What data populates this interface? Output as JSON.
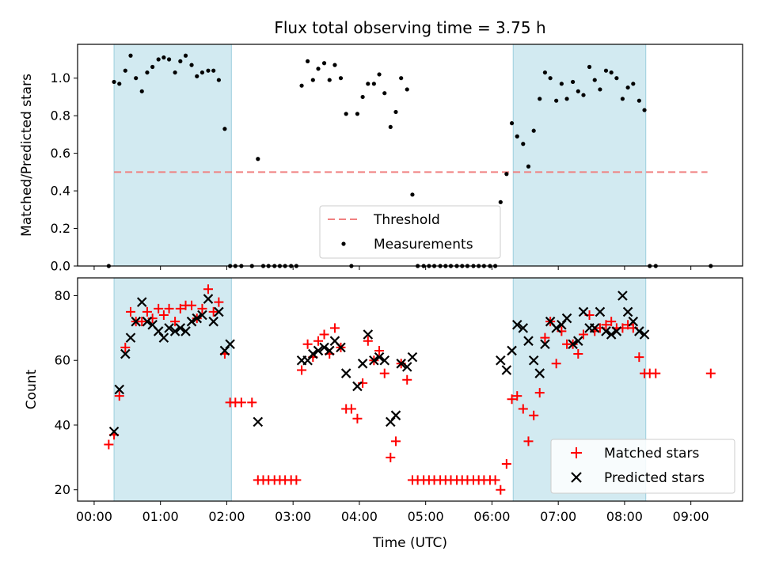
{
  "chart_data": [
    {
      "type": "scatter",
      "title": "Flux total observing time = 3.75 h",
      "xlabel": "",
      "ylabel": "Matched/Predicted stars",
      "ylim": [
        0,
        1.18
      ],
      "yticks": [
        0.0,
        0.2,
        0.4,
        0.6,
        0.8,
        1.0
      ],
      "ytick_labels": [
        "0.0",
        "0.2",
        "0.4",
        "0.6",
        "0.8",
        "1.0"
      ],
      "xlim": [
        -0.25,
        9.78
      ],
      "shaded_intervals": [
        [
          0.3,
          2.07
        ],
        [
          6.32,
          8.32
        ]
      ],
      "shade_color": "#add8e6",
      "legend_position": "bottom-center",
      "threshold": {
        "name": "Threshold",
        "value": 0.5,
        "x_range": [
          0.3,
          9.25
        ],
        "color": "#f08080"
      },
      "series": [
        {
          "name": "Measurements",
          "marker": "dot",
          "color": "#000000",
          "x": [
            0.22,
            0.3,
            0.38,
            0.47,
            0.55,
            0.63,
            0.72,
            0.8,
            0.88,
            0.97,
            1.05,
            1.13,
            1.22,
            1.3,
            1.38,
            1.47,
            1.55,
            1.63,
            1.72,
            1.8,
            1.88,
            1.97,
            2.05,
            2.13,
            2.22,
            2.38,
            2.47,
            2.55,
            2.63,
            2.72,
            2.8,
            2.88,
            2.97,
            3.05,
            3.13,
            3.22,
            3.3,
            3.38,
            3.47,
            3.55,
            3.63,
            3.72,
            3.8,
            3.88,
            3.97,
            4.05,
            4.13,
            4.22,
            4.3,
            4.38,
            4.47,
            4.55,
            4.63,
            4.72,
            4.8,
            4.88,
            4.97,
            5.05,
            5.13,
            5.22,
            5.3,
            5.38,
            5.47,
            5.55,
            5.63,
            5.72,
            5.8,
            5.88,
            5.97,
            6.05,
            6.13,
            6.22,
            6.3,
            6.38,
            6.47,
            6.55,
            6.63,
            6.72,
            6.8,
            6.88,
            6.97,
            7.05,
            7.13,
            7.22,
            7.3,
            7.38,
            7.47,
            7.55,
            7.63,
            7.72,
            7.8,
            7.88,
            7.97,
            8.05,
            8.13,
            8.22,
            8.3,
            8.38,
            8.47,
            9.3
          ],
          "y": [
            0.0,
            0.98,
            0.97,
            1.04,
            1.12,
            1.0,
            0.93,
            1.03,
            1.06,
            1.1,
            1.11,
            1.1,
            1.03,
            1.09,
            1.12,
            1.07,
            1.01,
            1.03,
            1.04,
            1.04,
            0.99,
            0.73,
            0.0,
            0.0,
            0.0,
            0.0,
            0.57,
            0.0,
            0.0,
            0.0,
            0.0,
            0.0,
            0.0,
            0.0,
            0.96,
            1.09,
            0.99,
            1.05,
            1.08,
            0.99,
            1.07,
            1.0,
            0.81,
            0.0,
            0.81,
            0.9,
            0.97,
            0.97,
            1.02,
            0.92,
            0.74,
            0.82,
            1.0,
            0.94,
            0.38,
            0.0,
            0.0,
            0.0,
            0.0,
            0.0,
            0.0,
            0.0,
            0.0,
            0.0,
            0.0,
            0.0,
            0.0,
            0.0,
            0.0,
            0.0,
            0.34,
            0.49,
            0.76,
            0.69,
            0.65,
            0.53,
            0.72,
            0.89,
            1.03,
            1.0,
            0.88,
            0.97,
            0.89,
            0.98,
            0.93,
            0.91,
            1.06,
            0.99,
            0.94,
            1.04,
            1.03,
            1.0,
            0.89,
            0.95,
            0.97,
            0.88,
            0.83,
            0.0,
            0.0,
            0.0
          ]
        }
      ]
    },
    {
      "type": "scatter",
      "title": "",
      "xlabel": "Time (UTC)",
      "ylabel": "Count",
      "ylim": [
        16.5,
        85.5
      ],
      "yticks": [
        20,
        40,
        60,
        80
      ],
      "ytick_labels": [
        "20",
        "40",
        "60",
        "80"
      ],
      "xlim": [
        -0.25,
        9.78
      ],
      "xticks": [
        0,
        1,
        2,
        3,
        4,
        5,
        6,
        7,
        8,
        9
      ],
      "xtick_labels": [
        "00:00",
        "01:00",
        "02:00",
        "03:00",
        "04:00",
        "05:00",
        "06:00",
        "07:00",
        "08:00",
        "09:00"
      ],
      "shaded_intervals": [
        [
          0.3,
          2.07
        ],
        [
          6.32,
          8.32
        ]
      ],
      "shade_color": "#add8e6",
      "legend_position": "bottom-right",
      "series": [
        {
          "name": "Matched stars",
          "marker": "plus",
          "color": "#ff0000",
          "x": [
            0.22,
            0.3,
            0.38,
            0.47,
            0.55,
            0.63,
            0.72,
            0.8,
            0.88,
            0.97,
            1.05,
            1.13,
            1.22,
            1.3,
            1.38,
            1.47,
            1.55,
            1.63,
            1.72,
            1.8,
            1.88,
            1.97,
            2.05,
            2.13,
            2.22,
            2.38,
            2.47,
            2.55,
            2.63,
            2.72,
            2.8,
            2.88,
            2.97,
            3.05,
            3.13,
            3.22,
            3.3,
            3.38,
            3.47,
            3.55,
            3.63,
            3.72,
            3.8,
            3.88,
            3.97,
            4.05,
            4.13,
            4.22,
            4.3,
            4.38,
            4.47,
            4.55,
            4.63,
            4.72,
            4.8,
            4.88,
            4.97,
            5.05,
            5.13,
            5.22,
            5.3,
            5.38,
            5.47,
            5.55,
            5.63,
            5.72,
            5.8,
            5.88,
            5.97,
            6.05,
            6.13,
            6.22,
            6.3,
            6.38,
            6.47,
            6.55,
            6.63,
            6.72,
            6.8,
            6.88,
            6.97,
            7.05,
            7.13,
            7.22,
            7.3,
            7.38,
            7.47,
            7.55,
            7.63,
            7.72,
            7.8,
            7.88,
            7.97,
            8.05,
            8.13,
            8.22,
            8.3,
            8.38,
            8.47,
            9.3
          ],
          "y": [
            34,
            37,
            49,
            64,
            75,
            72,
            72,
            75,
            73,
            76,
            74,
            76,
            72,
            76,
            77,
            77,
            73,
            76,
            82,
            75,
            78,
            62,
            47,
            47,
            47,
            47,
            23,
            23,
            23,
            23,
            23,
            23,
            23,
            23,
            57,
            65,
            61,
            66,
            68,
            62,
            70,
            64,
            45,
            45,
            42,
            53,
            66,
            60,
            63,
            56,
            30,
            35,
            59,
            54,
            23,
            23,
            23,
            23,
            23,
            23,
            23,
            23,
            23,
            23,
            23,
            23,
            23,
            23,
            23,
            23,
            20,
            28,
            48,
            49,
            45,
            35,
            43,
            50,
            67,
            72,
            59,
            69,
            65,
            65,
            62,
            68,
            74,
            69,
            70,
            71,
            72,
            70,
            70,
            71,
            70,
            61,
            56,
            56,
            56,
            56
          ]
        },
        {
          "name": "Predicted stars",
          "marker": "x",
          "color": "#000000",
          "x": [
            0.3,
            0.38,
            0.47,
            0.55,
            0.63,
            0.72,
            0.8,
            0.88,
            0.97,
            1.05,
            1.13,
            1.22,
            1.3,
            1.38,
            1.47,
            1.55,
            1.63,
            1.72,
            1.8,
            1.88,
            1.97,
            2.05,
            2.47,
            3.13,
            3.22,
            3.3,
            3.38,
            3.47,
            3.55,
            3.63,
            3.72,
            3.8,
            3.97,
            4.05,
            4.13,
            4.22,
            4.3,
            4.38,
            4.47,
            4.55,
            4.63,
            4.72,
            4.8,
            6.13,
            6.22,
            6.3,
            6.38,
            6.47,
            6.55,
            6.63,
            6.72,
            6.8,
            6.88,
            6.97,
            7.05,
            7.13,
            7.22,
            7.3,
            7.38,
            7.47,
            7.55,
            7.63,
            7.72,
            7.8,
            7.88,
            7.97,
            8.05,
            8.13,
            8.22,
            8.3
          ],
          "y": [
            38,
            51,
            62,
            67,
            72,
            78,
            72,
            71,
            69,
            67,
            70,
            69,
            70,
            69,
            72,
            73,
            74,
            79,
            72,
            75,
            63,
            65,
            41,
            60,
            60,
            62,
            63,
            64,
            63,
            66,
            64,
            56,
            52,
            59,
            68,
            60,
            61,
            60,
            41,
            43,
            59,
            58,
            61,
            60,
            57,
            63,
            71,
            70,
            66,
            60,
            56,
            65,
            72,
            70,
            71,
            73,
            65,
            66,
            75,
            70,
            70,
            75,
            69,
            68,
            69,
            80,
            75,
            72,
            69,
            68
          ]
        }
      ]
    }
  ]
}
